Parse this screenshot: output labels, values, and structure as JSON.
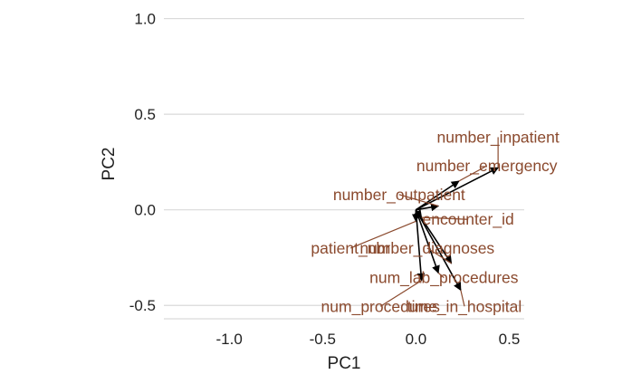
{
  "chart_data": {
    "type": "scatter",
    "subtype": "pca-loadings-biplot",
    "xlabel": "PC1",
    "ylabel": "PC2",
    "xlim": [
      -1.35,
      0.58
    ],
    "ylim": [
      -0.57,
      1.05
    ],
    "x_ticks": [
      -1.0,
      -0.5,
      0.0,
      0.5
    ],
    "x_tick_labels": [
      "-1.0",
      "-0.5",
      "0.0",
      "0.5"
    ],
    "y_ticks": [
      1.0,
      0.5,
      0.0,
      -0.5
    ],
    "y_tick_labels": [
      "1.0",
      "0.5",
      "0.0",
      "-0.5"
    ],
    "grid": "horizontal-major",
    "colors": {
      "arrow": "#000000",
      "label": "#8B4A2E",
      "grid": "#d9d9d9",
      "text": "#222222"
    },
    "loadings": [
      {
        "name": "number_inpatient",
        "x": 0.44,
        "y": 0.22,
        "label_x": 0.44,
        "label_y": 0.38
      },
      {
        "name": "number_emergency",
        "x": 0.23,
        "y": 0.15,
        "label_x": 0.38,
        "label_y": 0.23
      },
      {
        "name": "number_outpatient",
        "x": 0.12,
        "y": 0.02,
        "label_x": -0.09,
        "label_y": 0.08
      },
      {
        "name": "encounter_id",
        "x": 0.03,
        "y": -0.04,
        "label_x": 0.28,
        "label_y": -0.05
      },
      {
        "name": "patient_nbr",
        "x": 0.0,
        "y": -0.06,
        "label_x": -0.35,
        "label_y": -0.2
      },
      {
        "name": "number_diagnoses",
        "x": 0.19,
        "y": -0.28,
        "label_x": 0.06,
        "label_y": -0.2
      },
      {
        "name": "num_lab_procedures",
        "x": 0.12,
        "y": -0.33,
        "label_x": 0.15,
        "label_y": -0.355
      },
      {
        "name": "time_in_hospital",
        "x": 0.24,
        "y": -0.42,
        "label_x": 0.26,
        "label_y": -0.505
      },
      {
        "name": "num_procedures",
        "x": 0.03,
        "y": -0.37,
        "label_x": -0.19,
        "label_y": -0.505
      }
    ]
  }
}
